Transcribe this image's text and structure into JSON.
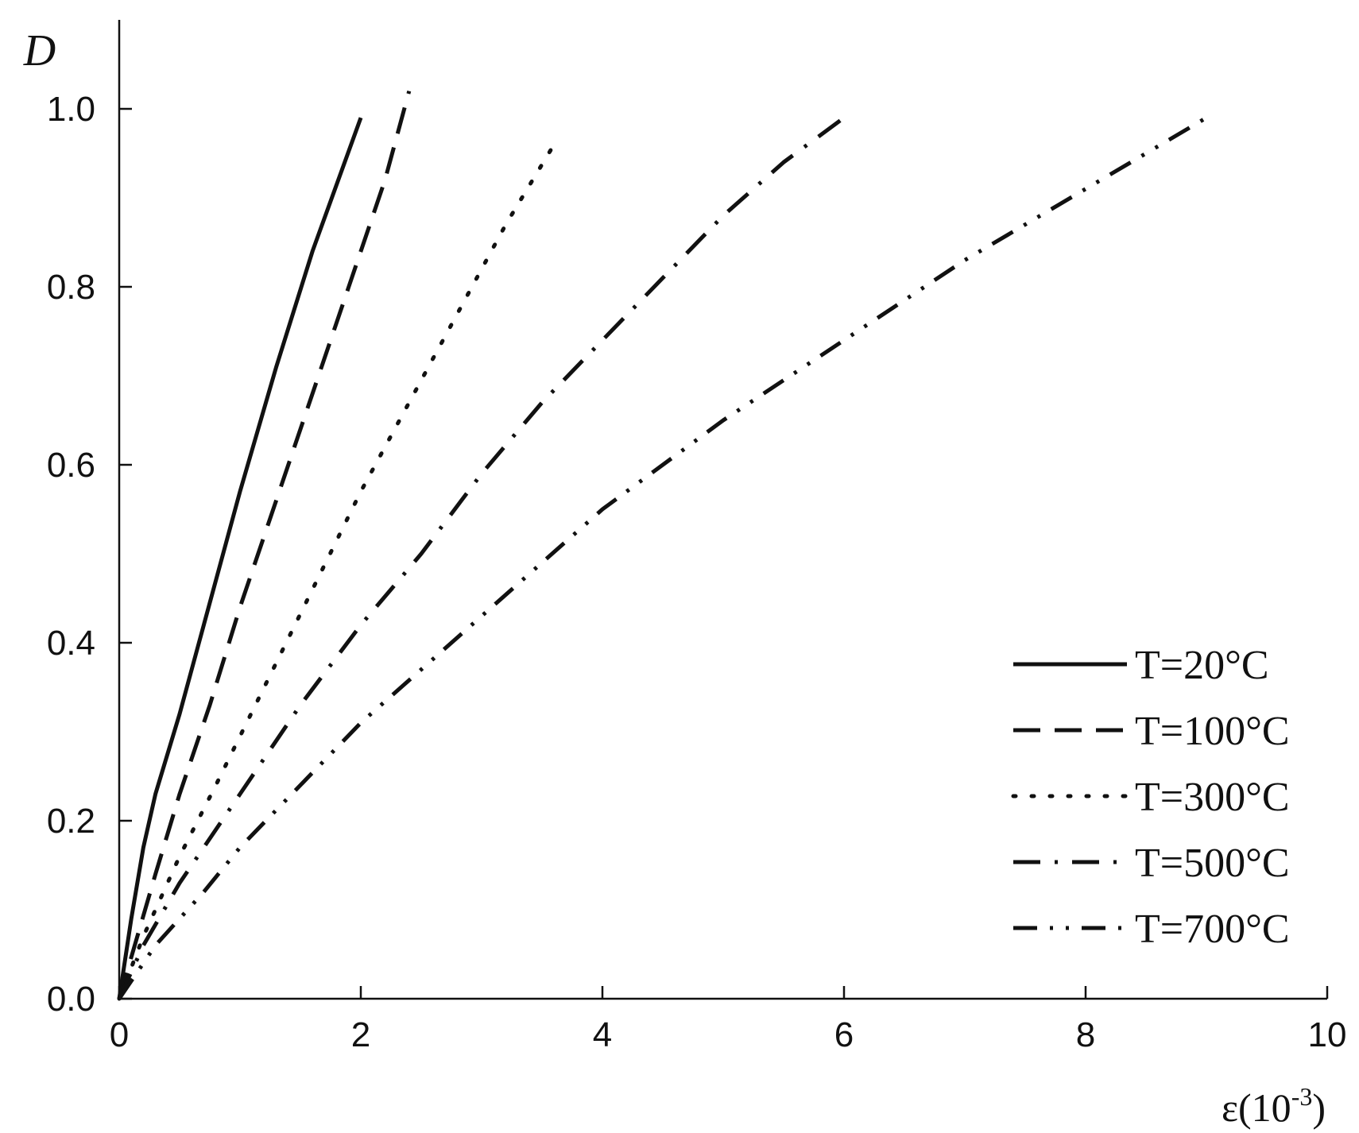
{
  "chart_data": {
    "type": "line",
    "xlabel": "ε(10",
    "xlabel_sup": "-3",
    "xlabel_close": ")",
    "ylabel": "D",
    "xlim": [
      0,
      10
    ],
    "ylim": [
      0,
      1.1
    ],
    "x_ticks": [
      "0",
      "2",
      "4",
      "6",
      "8",
      "10"
    ],
    "y_ticks": [
      "0.0",
      "0.2",
      "0.4",
      "0.6",
      "0.8",
      "1.0"
    ],
    "grid": false,
    "legend_position": "bottom-right",
    "series": [
      {
        "name": "T=20°C",
        "style": "solid",
        "x": [
          0,
          0.1,
          0.2,
          0.3,
          0.5,
          0.7,
          1.0,
          1.3,
          1.6,
          2.0
        ],
        "y": [
          0,
          0.09,
          0.17,
          0.23,
          0.32,
          0.42,
          0.57,
          0.71,
          0.84,
          0.99
        ]
      },
      {
        "name": "T=100°C",
        "style": "dashed",
        "x": [
          0,
          0.15,
          0.3,
          0.5,
          0.75,
          1.0,
          1.3,
          1.6,
          1.9,
          2.2,
          2.4
        ],
        "y": [
          0,
          0.07,
          0.14,
          0.23,
          0.33,
          0.44,
          0.56,
          0.68,
          0.8,
          0.92,
          1.02
        ]
      },
      {
        "name": "T=300°C",
        "style": "dotted",
        "x": [
          0,
          0.2,
          0.5,
          0.8,
          1.2,
          1.6,
          2.0,
          2.4,
          2.8,
          3.2,
          3.6
        ],
        "y": [
          0,
          0.07,
          0.16,
          0.24,
          0.35,
          0.46,
          0.57,
          0.67,
          0.77,
          0.87,
          0.96
        ]
      },
      {
        "name": "T=500°C",
        "style": "dashdot",
        "x": [
          0,
          0.2,
          0.5,
          1.0,
          1.5,
          2.0,
          2.5,
          3.0,
          3.5,
          4.0,
          4.5,
          5.0,
          5.5,
          6.0
        ],
        "y": [
          0,
          0.06,
          0.13,
          0.23,
          0.33,
          0.42,
          0.5,
          0.59,
          0.67,
          0.74,
          0.81,
          0.88,
          0.94,
          0.99
        ]
      },
      {
        "name": "T=700°C",
        "style": "dashdotdot",
        "x": [
          0,
          0.3,
          0.7,
          1.0,
          2.0,
          3.0,
          4.0,
          5.0,
          6.0,
          7.0,
          8.0,
          9.0
        ],
        "y": [
          0,
          0.06,
          0.12,
          0.17,
          0.31,
          0.43,
          0.55,
          0.65,
          0.74,
          0.83,
          0.91,
          0.99
        ]
      }
    ]
  }
}
